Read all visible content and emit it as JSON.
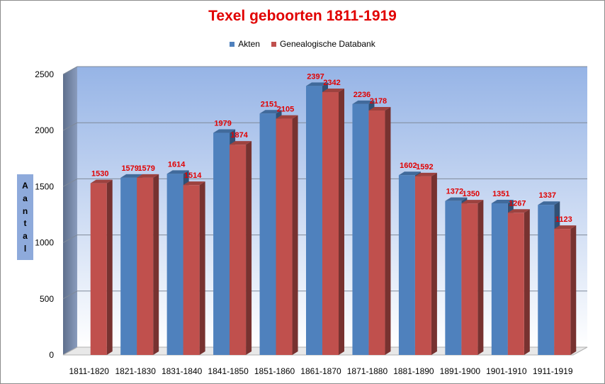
{
  "chart_data": {
    "type": "bar",
    "title": "Texel geboorten 1811-1919",
    "ylabel": "Aantal",
    "xlabel": "",
    "categories": [
      "1811-1820",
      "1821-1830",
      "1831-1840",
      "1841-1850",
      "1851-1860",
      "1861-1870",
      "1871-1880",
      "1881-1890",
      "1891-1900",
      "1901-1910",
      "1911-1919"
    ],
    "series": [
      {
        "name": "Akten",
        "color": "#4f81bd",
        "values": [
          null,
          1579,
          1614,
          1979,
          2151,
          2397,
          2236,
          1602,
          1372,
          1351,
          1337
        ]
      },
      {
        "name": "Genealogische Databank",
        "color": "#c0504d",
        "values": [
          1530,
          1579,
          1514,
          1874,
          2105,
          2342,
          2178,
          1592,
          1350,
          1267,
          1123
        ]
      }
    ],
    "data_label_color": "#e10000",
    "ylim": [
      0,
      2500
    ],
    "yticks": [
      0,
      500,
      1000,
      1500,
      2000,
      2500
    ],
    "grid": true,
    "legend_position": "top",
    "style": "3d-clustered-column",
    "plot_background": "light-blue gradient"
  }
}
